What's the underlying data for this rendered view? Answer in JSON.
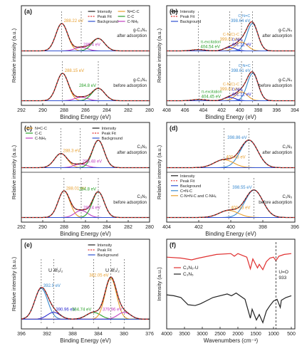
{
  "chart_data": [
    {
      "id": "a",
      "panel_label": "(a)",
      "type": "line",
      "xlabel": "Binding Energy (eV)",
      "ylabel": "Relative intensity (a.u.)",
      "xlim": [
        292,
        280
      ],
      "xticks": [
        "292",
        "290",
        "288",
        "286",
        "284",
        "282",
        "280"
      ],
      "legend": [
        "Intensity",
        "Peak Fit",
        "Background",
        "N=C-C",
        "C-C",
        "C-NHₓ"
      ],
      "legend_colors": [
        "#222222",
        "#e03030",
        "#3050d0",
        "#e8a030",
        "#2aa02a",
        "#c040c0"
      ],
      "legend_dash": [
        false,
        true,
        false,
        false,
        false,
        false
      ],
      "subplots": [
        {
          "label": "g-C₃N₄ after adsorption",
          "sample": "g-C₃N₄",
          "state": "after adsorption",
          "baseline": 0.04,
          "peaks": [
            {
              "center": 288.22,
              "height": 0.62,
              "width": 0.55,
              "color": "#e8a030",
              "label": "288.22 eV"
            },
            {
              "center": 286.4,
              "height": 0.08,
              "width": 0.6,
              "color": "#c040c0",
              "label": "286.4 eV"
            },
            {
              "center": 284.8,
              "height": 0.28,
              "width": 0.6,
              "color": "#2aa02a",
              "label": ""
            }
          ]
        },
        {
          "label": "g-C₃N₄ before adsorption",
          "sample": "g-C₃N₄",
          "state": "before adsorption",
          "baseline": 0.04,
          "peaks": [
            {
              "center": 288.15,
              "height": 0.62,
              "width": 0.55,
              "color": "#e8a030",
              "label": "288.15 eV"
            },
            {
              "center": 286.4,
              "height": 0.08,
              "width": 0.6,
              "color": "#c040c0",
              "label": ""
            },
            {
              "center": 284.8,
              "height": 0.28,
              "width": 0.6,
              "color": "#2aa02a",
              "label": "284.8 eV"
            }
          ]
        }
      ]
    },
    {
      "id": "b",
      "panel_label": "(b)",
      "type": "line",
      "xlabel": "Binding Energy (eV)",
      "ylabel": "Relative intensity (a.u.)",
      "xlim": [
        408,
        394
      ],
      "xticks": [
        "408",
        "406",
        "404",
        "402",
        "400",
        "398",
        "396",
        "394"
      ],
      "legend": [
        "Intensity",
        "Peak Fit",
        "Background"
      ],
      "legend_colors": [
        "#222222",
        "#e03030",
        "#3050d0"
      ],
      "legend_dash": [
        false,
        true,
        false
      ],
      "subplots": [
        {
          "label": "g-C₃N₄ after adsorption",
          "sample": "g-C₃N₄",
          "state": "after adsorption",
          "baseline": 0.04,
          "peaks": [
            {
              "center": 398.64,
              "height": 0.62,
              "width": 0.6,
              "color": "#3a8ad0",
              "label": "398.64 eV",
              "group": "C-N=C"
            },
            {
              "center": 399.83,
              "height": 0.2,
              "width": 0.65,
              "color": "#e8a030",
              "label": "399.83 eV",
              "group": "C-N(C)-C"
            },
            {
              "center": 401.12,
              "height": 0.08,
              "width": 0.6,
              "color": "#2a2ad0",
              "label": "401.12 eV",
              "group": "C-NH₂"
            },
            {
              "center": 404.54,
              "height": 0.03,
              "width": 0.7,
              "color": "#2aa02a",
              "label": "404.54 eV",
              "group": "π-excitation"
            }
          ]
        },
        {
          "label": "g-C₃N₄ before adsorption",
          "sample": "g-C₃N₄",
          "state": "before adsorption",
          "baseline": 0.04,
          "peaks": [
            {
              "center": 398.61,
              "height": 0.62,
              "width": 0.6,
              "color": "#3a8ad0",
              "label": "398.61 eV",
              "group": "C-N=C"
            },
            {
              "center": 399.83,
              "height": 0.2,
              "width": 0.65,
              "color": "#e8a030",
              "label": "399.83 eV",
              "group": "C-N(C)-C"
            },
            {
              "center": 401.12,
              "height": 0.08,
              "width": 0.6,
              "color": "#2a2ad0",
              "label": "401.12 eV",
              "group": "C-NH₂"
            },
            {
              "center": 404.45,
              "height": 0.03,
              "width": 0.7,
              "color": "#2aa02a",
              "label": "404.45 eV",
              "group": "π-excitation"
            }
          ]
        }
      ]
    },
    {
      "id": "c",
      "panel_label": "(c)",
      "type": "line",
      "xlabel": "Binding Energy (eV)",
      "ylabel": "Relative intensity (a.u.)",
      "xlim": [
        292,
        280
      ],
      "xticks": [
        "292",
        "290",
        "288",
        "286",
        "284",
        "282",
        "280"
      ],
      "legend": [
        "N=C-C",
        "C-C",
        "C-NHₓ",
        "Intensity",
        "Peak Fit",
        "Background"
      ],
      "legend_colors": [
        "#e8a030",
        "#2aa02a",
        "#c040c0",
        "#222222",
        "#e03030",
        "#3050d0"
      ],
      "legend_dash": [
        false,
        false,
        false,
        false,
        true,
        false
      ],
      "subplots": [
        {
          "label": "C₃N₅ after adsorption",
          "sample": "C₃N₅",
          "state": "after adsorption",
          "baseline": 0.04,
          "peaks": [
            {
              "center": 288.3,
              "height": 0.32,
              "width": 0.6,
              "color": "#e8a030",
              "label": "288.3 eV"
            },
            {
              "center": 286.48,
              "height": 0.08,
              "width": 0.6,
              "color": "#c040c0",
              "label": "286.48 eV"
            },
            {
              "center": 284.8,
              "height": 0.62,
              "width": 0.55,
              "color": "#2aa02a",
              "label": ""
            }
          ]
        },
        {
          "label": "C₃N₅ before adsorption",
          "sample": "C₃N₅",
          "state": "before adsorption",
          "baseline": 0.04,
          "peaks": [
            {
              "center": 288.01,
              "height": 0.6,
              "width": 0.55,
              "color": "#e8a030",
              "label": "288.01 eV"
            },
            {
              "center": 286.4,
              "height": 0.16,
              "width": 0.6,
              "color": "#c040c0",
              "label": "286.4 eV"
            },
            {
              "center": 284.8,
              "height": 0.58,
              "width": 0.55,
              "color": "#2aa02a",
              "label": "284.8 eV"
            }
          ]
        }
      ]
    },
    {
      "id": "d",
      "panel_label": "(d)",
      "type": "line",
      "xlabel": "Binding Energy (eV)",
      "ylabel": "Relative intensity (a.u.)",
      "xlim": [
        404,
        396
      ],
      "xticks": [
        "404",
        "402",
        "400",
        "398",
        "396"
      ],
      "legend": [
        "Intensity",
        "Peak Fit",
        "Background",
        "C=N-C",
        "C-N=N-C and C-NHₓ"
      ],
      "legend_colors": [
        "#222222",
        "#e03030",
        "#3050d0",
        "#3a8ad0",
        "#e8a030"
      ],
      "legend_dash": [
        false,
        true,
        false,
        false,
        false
      ],
      "subplots": [
        {
          "label": "C₃N₅ after adsorption",
          "sample": "C₃N₅",
          "state": "after adsorption",
          "baseline": 0.04,
          "peaks": [
            {
              "center": 398.86,
              "height": 0.62,
              "width": 0.55,
              "color": "#3a8ad0",
              "label": "398.86 eV"
            },
            {
              "center": 400.43,
              "height": 0.18,
              "width": 0.6,
              "color": "#e8a030",
              "label": "400.43 eV"
            }
          ]
        },
        {
          "label": "C₃N₅ before adsorption",
          "sample": "C₃N₅",
          "state": "before adsorption",
          "baseline": 0.04,
          "peaks": [
            {
              "center": 398.55,
              "height": 0.62,
              "width": 0.55,
              "color": "#3a8ad0",
              "label": "398.55 eV"
            },
            {
              "center": 400.13,
              "height": 0.16,
              "width": 0.6,
              "color": "#e8a030",
              "label": "400.13 eV"
            }
          ]
        }
      ]
    },
    {
      "id": "e",
      "panel_label": "(e)",
      "type": "line",
      "xlabel": "Binding Energy (eV)",
      "ylabel": "Relative intensity (a.u.)",
      "xlim": [
        396,
        376
      ],
      "xticks": [
        "396",
        "392",
        "388",
        "384",
        "380",
        "376"
      ],
      "legend": [
        "Intensity",
        "Peak Fit",
        "Background"
      ],
      "legend_colors": [
        "#222222",
        "#e03030",
        "#3050d0"
      ],
      "legend_dash": [
        false,
        true,
        false
      ],
      "annotations": [
        "U 4f₅/₂",
        "U 4f₇/₂"
      ],
      "peaks": [
        {
          "center": 392.9,
          "height": 0.45,
          "width": 1.0,
          "color": "#3a8ad0",
          "label": "392.9 eV"
        },
        {
          "center": 390.96,
          "height": 0.1,
          "width": 1.0,
          "color": "#2a2ad0",
          "label": "390.96 eV"
        },
        {
          "center": 384.74,
          "height": 0.1,
          "width": 1.1,
          "color": "#2aa02a",
          "label": "384.74 eV"
        },
        {
          "center": 382.05,
          "height": 0.6,
          "width": 0.9,
          "color": "#e8a030",
          "label": "382.05 eV"
        },
        {
          "center": 379.96,
          "height": 0.1,
          "width": 1.0,
          "color": "#c040c0",
          "label": "379.96 eV"
        }
      ]
    },
    {
      "id": "f",
      "panel_label": "(f)",
      "type": "line",
      "xlabel": "Wavenumbers (cm⁻¹)",
      "ylabel": "Intensity (a.u.)",
      "xlim": [
        4000,
        400
      ],
      "xticks": [
        "4000",
        "3500",
        "3000",
        "2500",
        "2000",
        "1500",
        "1000",
        "500"
      ],
      "marker_line": {
        "x": 933,
        "label": "U=O 933"
      },
      "series": [
        {
          "name": "C₃N₅-U",
          "color": "#e03030",
          "points": [
            [
              4000,
              0.8
            ],
            [
              3600,
              0.79
            ],
            [
              3300,
              0.77
            ],
            [
              3100,
              0.79
            ],
            [
              2600,
              0.83
            ],
            [
              2200,
              0.84
            ],
            [
              2100,
              0.81
            ],
            [
              2000,
              0.84
            ],
            [
              1750,
              0.8
            ],
            [
              1650,
              0.67
            ],
            [
              1580,
              0.78
            ],
            [
              1450,
              0.68
            ],
            [
              1400,
              0.72
            ],
            [
              1300,
              0.66
            ],
            [
              1200,
              0.75
            ],
            [
              1100,
              0.79
            ],
            [
              1000,
              0.8
            ],
            [
              933,
              0.76
            ],
            [
              850,
              0.81
            ],
            [
              700,
              0.83
            ],
            [
              500,
              0.84
            ]
          ]
        },
        {
          "name": "C₃N₅",
          "color": "#222222",
          "points": [
            [
              4000,
              0.38
            ],
            [
              3800,
              0.37
            ],
            [
              3600,
              0.35
            ],
            [
              3400,
              0.27
            ],
            [
              3200,
              0.26
            ],
            [
              3050,
              0.28
            ],
            [
              2700,
              0.35
            ],
            [
              2300,
              0.39
            ],
            [
              2180,
              0.37
            ],
            [
              2050,
              0.4
            ],
            [
              1800,
              0.33
            ],
            [
              1650,
              0.12
            ],
            [
              1600,
              0.22
            ],
            [
              1480,
              0.1
            ],
            [
              1400,
              0.16
            ],
            [
              1300,
              0.07
            ],
            [
              1200,
              0.2
            ],
            [
              1100,
              0.26
            ],
            [
              1000,
              0.31
            ],
            [
              900,
              0.33
            ],
            [
              810,
              0.24
            ],
            [
              780,
              0.32
            ],
            [
              650,
              0.35
            ],
            [
              500,
              0.37
            ]
          ]
        }
      ]
    }
  ]
}
